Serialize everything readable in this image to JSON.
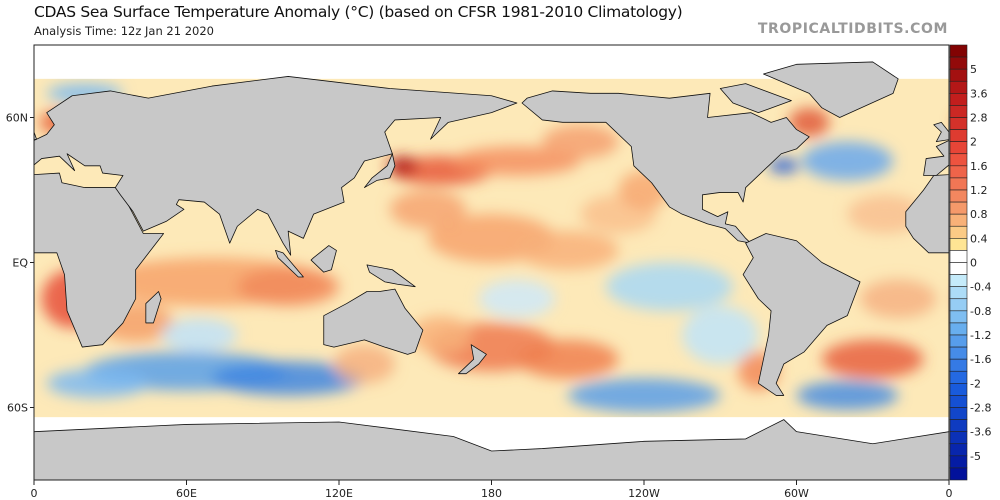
{
  "header": {
    "title": "CDAS Sea Surface Temperature Anomaly (°C) (based on CFSR 1981-2010 Climatology)",
    "subtitle": "Analysis Time: 12z Jan 21 2020",
    "watermark": "TROPICALTIDBITS.COM"
  },
  "map": {
    "projection": "equirectangular",
    "lon_range": [
      0,
      360
    ],
    "lat_range": [
      -90,
      90
    ],
    "land_color": "#c8c8c8",
    "lat_labels": [
      "60N",
      "EQ",
      "60S"
    ],
    "lat_values": [
      60,
      0,
      -60
    ],
    "lon_labels": [
      "0",
      "60E",
      "120E",
      "180",
      "120W",
      "60W",
      "0"
    ],
    "lon_values": [
      0,
      60,
      120,
      180,
      240,
      300,
      360
    ]
  },
  "colorbar": {
    "labels": [
      "5",
      "3.6",
      "2.8",
      "2",
      "1.6",
      "1.2",
      "0.8",
      "0.4",
      "0",
      "-0.4",
      "-0.8",
      "-1.2",
      "-1.6",
      "-2",
      "-2.8",
      "-3.6",
      "-5"
    ],
    "band_count": 36,
    "warm_end": "#7a0000",
    "cold_end": "#000c96",
    "zero": "#ffffff"
  }
}
